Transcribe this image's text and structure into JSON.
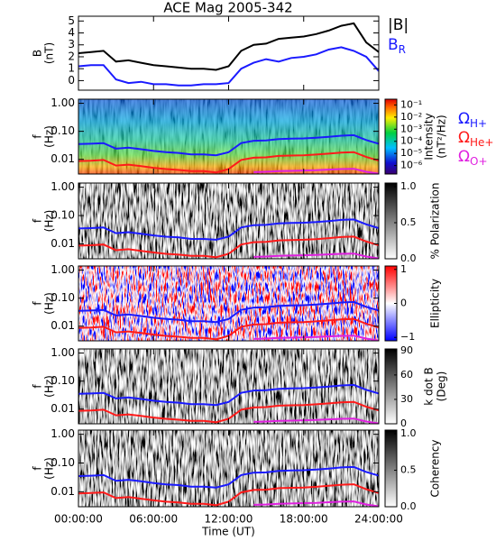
{
  "title": "ACE Mag 2005-342",
  "time_axis": {
    "xlim": [
      0,
      24
    ],
    "xticks": [
      {
        "value": 0,
        "label": "00:00:00"
      },
      {
        "value": 6,
        "label": "06:00:00"
      },
      {
        "value": 12,
        "label": "12:00:00"
      },
      {
        "value": 18,
        "label": "18:00:00"
      },
      {
        "value": 24,
        "label": "24:00:00"
      }
    ],
    "xlabel": "Time (UT)",
    "x": [
      0,
      1,
      2,
      3,
      4,
      5,
      6,
      7,
      8,
      9,
      10,
      11,
      12,
      13,
      14,
      15,
      16,
      17,
      18,
      19,
      20,
      21,
      22,
      23,
      24
    ]
  },
  "chart_data": [
    {
      "type": "line",
      "ylabel": [
        "B",
        "(nT)"
      ],
      "ylim": [
        -0.8,
        5.4
      ],
      "yticks": [
        0,
        1,
        2,
        3,
        4,
        5
      ],
      "series": [
        {
          "name": "|B|",
          "color": "#000000",
          "values": [
            2.3,
            2.4,
            2.5,
            1.6,
            1.7,
            1.5,
            1.3,
            1.2,
            1.1,
            1.0,
            1.0,
            0.9,
            1.2,
            2.5,
            3.0,
            3.1,
            3.5,
            3.6,
            3.7,
            3.9,
            4.2,
            4.6,
            4.8,
            3.2,
            2.4
          ]
        },
        {
          "name": "B",
          "sub": "R",
          "color": "#1a1aff",
          "values": [
            1.2,
            1.3,
            1.3,
            0.1,
            -0.2,
            -0.1,
            -0.3,
            -0.3,
            -0.4,
            -0.4,
            -0.3,
            -0.3,
            -0.2,
            1.0,
            1.5,
            1.8,
            1.6,
            1.9,
            2.0,
            2.2,
            2.6,
            2.8,
            2.5,
            2.0,
            0.8
          ]
        }
      ]
    },
    {
      "type": "spectrogram",
      "colormap": "spectral",
      "ylabel": [
        "f",
        "(Hz)"
      ],
      "ylim": [
        0.003,
        1.4
      ],
      "log_y": true,
      "yticks": [
        {
          "value": 1,
          "label": "1.00"
        },
        {
          "value": 0.1,
          "label": "0.10"
        },
        0.01
      ],
      "clabel": [
        "Intensity",
        "(nT²/Hz)"
      ],
      "clim": [
        2e-07,
        0.3
      ],
      "log_c": true,
      "cticks": [
        {
          "value": 0.1,
          "label": "10⁻¹"
        },
        {
          "value": 0.01,
          "label": "10⁻²"
        },
        {
          "value": 0.001,
          "label": "10⁻³"
        },
        {
          "value": 0.0001,
          "label": "10⁻⁴"
        },
        {
          "value": 1e-05,
          "label": "10⁻⁵"
        },
        {
          "value": 1e-06,
          "label": "10⁻⁶"
        }
      ],
      "legend": true
    },
    {
      "type": "spectrogram",
      "colormap": "gray",
      "ylabel": [
        "f",
        "(Hz)"
      ],
      "ylim": [
        0.003,
        1.4
      ],
      "log_y": true,
      "yticks": [
        {
          "value": 1,
          "label": "1.00"
        },
        {
          "value": 0.1,
          "label": "0.10"
        },
        0.01
      ],
      "clabel": [
        "% Polarization"
      ],
      "clim": [
        0,
        1.05
      ],
      "cticks": [
        {
          "value": 0,
          "label": "0.0"
        },
        0.5,
        {
          "value": 1,
          "label": "1.0"
        }
      ]
    },
    {
      "type": "spectrogram",
      "colormap": "bwr",
      "ylabel": [
        "f",
        "(Hz)"
      ],
      "ylim": [
        0.003,
        1.4
      ],
      "log_y": true,
      "yticks": [
        {
          "value": 1,
          "label": "1.00"
        },
        {
          "value": 0.1,
          "label": "0.10"
        },
        0.01
      ],
      "clabel": [
        "Ellipticity"
      ],
      "clim": [
        -1.1,
        1.1
      ],
      "cticks": [
        {
          "value": -1,
          "label": "−1"
        },
        0,
        1
      ]
    },
    {
      "type": "spectrogram",
      "colormap": "gray",
      "ylabel": [
        "f",
        "(Hz)"
      ],
      "ylim": [
        0.003,
        1.4
      ],
      "log_y": true,
      "yticks": [
        {
          "value": 1,
          "label": "1.00"
        },
        {
          "value": 0.1,
          "label": "0.10"
        },
        0.01
      ],
      "clabel": [
        "k dot B",
        "(Deg)"
      ],
      "clim": [
        0,
        92
      ],
      "cticks": [
        0,
        30,
        60,
        90
      ]
    },
    {
      "type": "spectrogram",
      "colormap": "gray",
      "ylabel": [
        "f",
        "(Hz)"
      ],
      "ylim": [
        0.003,
        1.4
      ],
      "log_y": true,
      "yticks": [
        {
          "value": 1,
          "label": "1.00"
        },
        {
          "value": 0.1,
          "label": "0.10"
        },
        0.01
      ],
      "clabel": [
        "Coherency"
      ],
      "clim": [
        0,
        1.05
      ],
      "cticks": [
        {
          "value": 0,
          "label": "0.0"
        },
        0.5,
        {
          "value": 1,
          "label": "1.0"
        }
      ]
    }
  ],
  "gyrofrequencies": {
    "series": [
      {
        "name": "Ω",
        "sub": "H+",
        "color": "#1a1aff",
        "values": [
          0.035,
          0.036,
          0.038,
          0.024,
          0.026,
          0.023,
          0.02,
          0.018,
          0.017,
          0.015,
          0.015,
          0.014,
          0.018,
          0.038,
          0.046,
          0.047,
          0.053,
          0.055,
          0.056,
          0.059,
          0.064,
          0.07,
          0.073,
          0.049,
          0.036
        ]
      },
      {
        "name": "Ω",
        "sub": "He+",
        "color": "#ff1a1a",
        "values": [
          0.0087,
          0.009,
          0.0095,
          0.006,
          0.0065,
          0.0057,
          0.005,
          0.0045,
          0.0042,
          0.0038,
          0.0038,
          0.0034,
          0.0045,
          0.0095,
          0.0115,
          0.0118,
          0.0133,
          0.0137,
          0.014,
          0.0148,
          0.016,
          0.0175,
          0.0182,
          0.0122,
          0.009
        ]
      },
      {
        "name": "Ω",
        "sub": "O+",
        "color": "#e020e0",
        "values": [
          null,
          null,
          null,
          null,
          null,
          null,
          null,
          null,
          null,
          null,
          null,
          null,
          null,
          null,
          0.0035,
          0.0036,
          0.0038,
          0.0039,
          0.004,
          0.0041,
          0.0043,
          0.0045,
          0.0046,
          0.0036,
          0.0031
        ]
      }
    ]
  }
}
